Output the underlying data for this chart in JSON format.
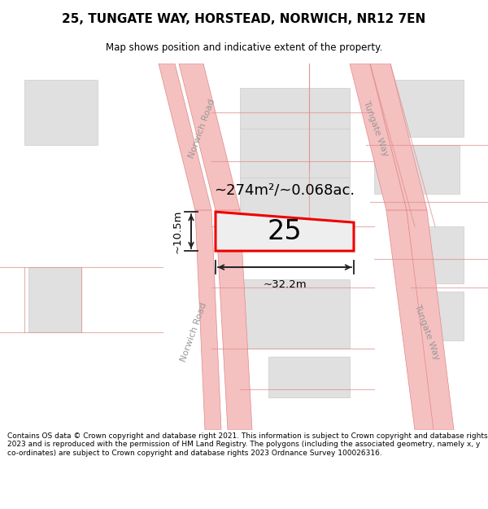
{
  "title": "25, TUNGATE WAY, HORSTEAD, NORWICH, NR12 7EN",
  "subtitle": "Map shows position and indicative extent of the property.",
  "footer": "Contains OS data © Crown copyright and database right 2021. This information is subject to Crown copyright and database rights 2023 and is reproduced with the permission of HM Land Registry. The polygons (including the associated geometry, namely x, y co-ordinates) are subject to Crown copyright and database rights 2023 Ordnance Survey 100026316.",
  "property_label": "25",
  "area_label": "~274m²/~0.068ac.",
  "width_label": "~32.2m",
  "height_label": "~10.5m",
  "road_color": "#f5c0c0",
  "road_edge_color": "#e08888",
  "block_color": "#e0e0e0",
  "block_edge_color": "#cccccc",
  "property_fill": "#eeeeee",
  "property_outline": "#ee0000",
  "dim_color": "#222222",
  "road_label_color": "#aaaaaa",
  "map_bg": "#ffffff"
}
